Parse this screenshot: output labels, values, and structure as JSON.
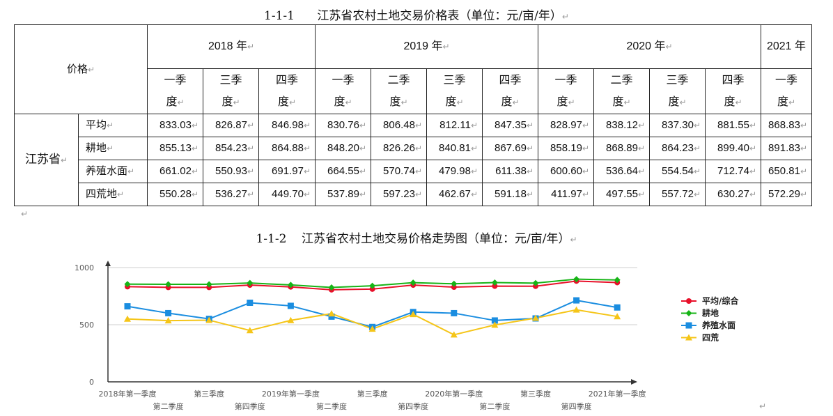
{
  "table_caption": {
    "number": "1-1-1",
    "text": "江苏省农村土地交易价格表（单位：元/亩/年）"
  },
  "table": {
    "corner_label": "价格",
    "province": "江苏省",
    "years": [
      {
        "label": "2018 年",
        "span": 3
      },
      {
        "label": "2019 年",
        "span": 4
      },
      {
        "label": "2020 年",
        "span": 4
      },
      {
        "label": "2021 年",
        "span": 1
      }
    ],
    "quarters": [
      "一季度",
      "三季度",
      "四季度",
      "一季度",
      "二季度",
      "三季度",
      "四季度",
      "一季度",
      "二季度",
      "三季度",
      "四季度",
      "一季度"
    ],
    "rows": [
      {
        "label": "平均",
        "values": [
          "833.03",
          "826.87",
          "846.98",
          "830.76",
          "806.48",
          "812.11",
          "847.35",
          "828.97",
          "838.12",
          "837.30",
          "881.55",
          "868.83"
        ]
      },
      {
        "label": "耕地",
        "values": [
          "855.13",
          "854.23",
          "864.88",
          "848.20",
          "826.26",
          "840.81",
          "867.69",
          "858.19",
          "868.89",
          "864.23",
          "899.40",
          "891.83"
        ]
      },
      {
        "label": "养殖水面",
        "values": [
          "661.02",
          "550.93",
          "691.97",
          "664.55",
          "570.74",
          "479.98",
          "611.38",
          "600.60",
          "536.64",
          "554.54",
          "712.74",
          "650.81"
        ]
      },
      {
        "label": "四荒地",
        "values": [
          "550.28",
          "536.27",
          "449.70",
          "537.89",
          "597.23",
          "462.67",
          "591.18",
          "411.97",
          "497.55",
          "557.72",
          "630.27",
          "572.29"
        ]
      }
    ]
  },
  "chart_caption": {
    "number": "1-1-2",
    "text": "江苏省农村土地交易价格走势图（单位：元/亩/年）"
  },
  "chart_data": {
    "type": "line",
    "ylim": [
      0,
      1000
    ],
    "yticks": [
      "0",
      "500",
      "1000"
    ],
    "x": [
      "2018年第一季度",
      "第二季度",
      "第三季度",
      "第四季度",
      "2019年第一季度",
      "第二季度",
      "第三季度",
      "第四季度",
      "2020年第一季度",
      "第二季度",
      "第三季度",
      "第四季度",
      "2021年第一季度"
    ],
    "x_tick_labels_upper": [
      "2018年第一季度",
      "",
      "第三季度",
      "",
      "2019年第一季度",
      "",
      "第三季度",
      "",
      "2020年第一季度",
      "",
      "第三季度",
      "",
      "2021年第一季度"
    ],
    "x_tick_labels_lower": [
      "",
      "第二季度",
      "",
      "第四季度",
      "",
      "第二季度",
      "",
      "第四季度",
      "",
      "第二季度",
      "",
      "第四季度",
      ""
    ],
    "legend_position": "right",
    "grid": "horizontal",
    "series": [
      {
        "name": "平均/综合",
        "color": "#e8102a",
        "marker": "circle",
        "values": [
          833,
          827,
          827,
          847,
          831,
          806,
          812,
          847,
          829,
          838,
          837,
          882,
          869
        ]
      },
      {
        "name": "耕地",
        "color": "#16b416",
        "marker": "diamond",
        "values": [
          855,
          854,
          854,
          865,
          848,
          826,
          841,
          868,
          858,
          869,
          864,
          899,
          892
        ]
      },
      {
        "name": "养殖水面",
        "color": "#1a8de0",
        "marker": "square",
        "values": [
          661,
          601,
          551,
          692,
          665,
          571,
          480,
          611,
          601,
          537,
          555,
          713,
          651
        ]
      },
      {
        "name": "四荒",
        "color": "#f5c518",
        "marker": "triangle",
        "values": [
          550,
          536,
          540,
          450,
          538,
          597,
          463,
          591,
          412,
          498,
          558,
          630,
          572
        ]
      }
    ]
  },
  "return_mark": "↵"
}
